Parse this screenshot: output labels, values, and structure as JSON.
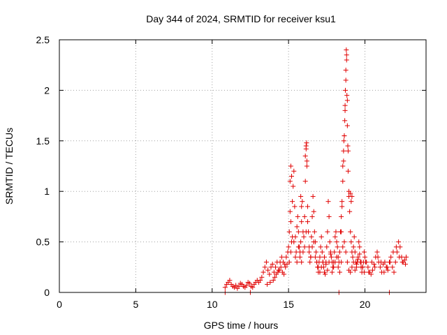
{
  "chart_data": {
    "type": "scatter",
    "title": "Day 344 of 2024, SRMTID for receiver ksu1",
    "xlabel": "GPS time / hours",
    "ylabel": "SRMTID / TECUs",
    "xlim": [
      0,
      24
    ],
    "ylim": [
      0,
      2.5
    ],
    "grid": true,
    "marker": "plus",
    "colors": {
      "series": "#e00000",
      "grid": "#a0a0a0",
      "axis": "#000000"
    },
    "x_ticks": [
      {
        "value": 0,
        "label": "0"
      },
      {
        "value": 5,
        "label": "5"
      },
      {
        "value": 10,
        "label": "10"
      },
      {
        "value": 15,
        "label": "15"
      },
      {
        "value": 20,
        "label": "20"
      }
    ],
    "y_ticks": [
      {
        "value": 0,
        "label": "0"
      },
      {
        "value": 0.5,
        "label": "0.5"
      },
      {
        "value": 1,
        "label": "1"
      },
      {
        "value": 1.5,
        "label": "1.5"
      },
      {
        "value": 2,
        "label": "2"
      },
      {
        "value": 2.5,
        "label": "2.5"
      }
    ],
    "series": [
      {
        "name": "SRMTID",
        "x": [
          10.85,
          10.95,
          11.05,
          11.15,
          11.25,
          11.35,
          11.45,
          11.55,
          11.65,
          11.75,
          11.85,
          11.95,
          12.05,
          12.15,
          12.25,
          12.35,
          12.45,
          12.55,
          12.65,
          12.75,
          12.85,
          12.95,
          13.05,
          13.15,
          13.25,
          13.35,
          13.45,
          13.55,
          13.65,
          13.75,
          13.85,
          13.95,
          14.05,
          14.15,
          14.25,
          14.35,
          14.45,
          14.55,
          14.65,
          14.75,
          14.85,
          14.95,
          15.0,
          15.05,
          15.1,
          15.15,
          15.2,
          15.25,
          15.3,
          15.35,
          15.4,
          15.45,
          15.5,
          15.55,
          15.6,
          15.65,
          15.7,
          15.75,
          15.8,
          15.85,
          15.9,
          15.95,
          16.0,
          16.05,
          16.1,
          16.15,
          16.2,
          16.25,
          16.3,
          16.35,
          16.4,
          16.45,
          16.5,
          16.55,
          16.6,
          16.65,
          16.7,
          16.75,
          16.8,
          16.85,
          16.9,
          16.95,
          17.0,
          17.05,
          17.1,
          17.15,
          17.2,
          17.25,
          17.3,
          17.35,
          17.4,
          17.45,
          17.5,
          17.55,
          17.6,
          17.65,
          17.7,
          17.75,
          17.8,
          17.85,
          17.9,
          17.95,
          18.0,
          18.05,
          18.1,
          18.15,
          18.2,
          18.25,
          18.3,
          18.35,
          18.4,
          18.45,
          18.5,
          18.55,
          18.6,
          18.65,
          18.7,
          18.75,
          18.8,
          18.85,
          18.9,
          18.95,
          19.0,
          19.05,
          19.1,
          19.15,
          19.2,
          19.25,
          19.3,
          19.35,
          19.4,
          19.45,
          19.5,
          19.55,
          19.6,
          19.65,
          19.7,
          19.75,
          19.8,
          19.85,
          19.9,
          19.95,
          20.0,
          20.1,
          20.2,
          20.3,
          20.4,
          20.5,
          20.6,
          20.7,
          20.8,
          20.9,
          21.0,
          21.1,
          21.2,
          21.3,
          21.4,
          21.5,
          21.6,
          21.7,
          21.8,
          21.9,
          22.0,
          22.1,
          22.2,
          22.3,
          22.4,
          22.5,
          22.6,
          22.7,
          15.05,
          15.15,
          15.25,
          15.35,
          15.45,
          15.55,
          15.65,
          15.75,
          15.85,
          15.95,
          16.05,
          16.15,
          16.25,
          16.35,
          16.45,
          16.55,
          16.65,
          16.75,
          16.85,
          16.95,
          17.05,
          17.15,
          17.25,
          17.35,
          17.45,
          17.55,
          17.65,
          17.75,
          17.85,
          17.95,
          18.05,
          18.15,
          18.25,
          18.35,
          18.45,
          18.55,
          18.65,
          18.75,
          18.85,
          18.95,
          19.05,
          19.15,
          19.25,
          19.35,
          19.45,
          19.55,
          19.65,
          19.75,
          19.85,
          19.95,
          20.05,
          20.25,
          20.45,
          20.65,
          20.85,
          21.05,
          21.25,
          21.45,
          21.65,
          21.85,
          22.05,
          22.25,
          22.45,
          22.65,
          14.1,
          14.3,
          14.5,
          14.7,
          14.9,
          13.6,
          13.8,
          14.0,
          14.2,
          14.4,
          14.6,
          14.8,
          18.45,
          18.5,
          18.55,
          18.6,
          18.62,
          18.65,
          18.68,
          18.7,
          18.72,
          18.75,
          18.78,
          18.8,
          18.82,
          18.85,
          18.88,
          18.9,
          18.95,
          16.1,
          16.15,
          16.18,
          16.2,
          15.8,
          15.85,
          15.1,
          15.15,
          15.2,
          19.05,
          19.1,
          19.15,
          10.85,
          12.5,
          18.3,
          21.6
        ],
        "y": [
          0.05,
          0.08,
          0.1,
          0.12,
          0.08,
          0.06,
          0.05,
          0.07,
          0.04,
          0.06,
          0.09,
          0.08,
          0.06,
          0.05,
          0.07,
          0.1,
          0.09,
          0.06,
          0.05,
          0.08,
          0.1,
          0.12,
          0.1,
          0.12,
          0.15,
          0.2,
          0.25,
          0.3,
          0.22,
          0.18,
          0.25,
          0.28,
          0.2,
          0.25,
          0.3,
          0.22,
          0.3,
          0.35,
          0.3,
          0.28,
          0.35,
          0.4,
          0.45,
          0.6,
          0.8,
          0.7,
          0.5,
          0.9,
          1.05,
          1.2,
          0.85,
          0.55,
          0.4,
          0.65,
          0.75,
          0.6,
          0.45,
          0.35,
          0.5,
          0.7,
          0.9,
          0.6,
          0.55,
          0.75,
          1.1,
          1.45,
          1.25,
          0.85,
          0.6,
          0.45,
          0.3,
          0.35,
          0.55,
          0.75,
          0.95,
          0.8,
          0.6,
          0.5,
          0.4,
          0.3,
          0.25,
          0.2,
          0.3,
          0.35,
          0.45,
          0.55,
          0.4,
          0.3,
          0.25,
          0.2,
          0.18,
          0.3,
          0.45,
          0.6,
          0.9,
          0.75,
          0.5,
          0.4,
          0.35,
          0.3,
          0.25,
          0.3,
          0.4,
          0.55,
          0.6,
          0.5,
          0.45,
          0.35,
          0.3,
          0.4,
          0.6,
          0.75,
          0.9,
          1.1,
          1.3,
          1.55,
          1.8,
          2.1,
          2.35,
          1.9,
          1.4,
          1.0,
          0.8,
          0.6,
          0.5,
          0.4,
          0.35,
          0.45,
          0.55,
          0.4,
          0.3,
          0.25,
          0.3,
          0.35,
          0.5,
          0.45,
          0.3,
          0.25,
          0.2,
          0.25,
          0.3,
          0.4,
          0.35,
          0.3,
          0.25,
          0.2,
          0.18,
          0.22,
          0.28,
          0.35,
          0.4,
          0.3,
          0.25,
          0.2,
          0.28,
          0.3,
          0.25,
          0.22,
          0.3,
          0.35,
          0.25,
          0.2,
          0.3,
          0.4,
          0.5,
          0.45,
          0.35,
          0.3,
          0.32,
          0.35,
          0.3,
          0.4,
          0.55,
          0.5,
          0.35,
          0.3,
          0.45,
          0.4,
          0.3,
          0.4,
          0.45,
          0.6,
          0.7,
          0.4,
          0.35,
          0.45,
          0.5,
          0.35,
          0.3,
          0.25,
          0.2,
          0.25,
          0.3,
          0.35,
          0.28,
          0.22,
          0.3,
          0.38,
          0.2,
          0.25,
          0.3,
          0.35,
          0.25,
          0.2,
          0.3,
          0.45,
          0.5,
          0.4,
          0.3,
          0.22,
          0.2,
          0.25,
          0.3,
          0.22,
          0.28,
          0.33,
          0.38,
          0.3,
          0.25,
          0.2,
          0.3,
          0.2,
          0.3,
          0.25,
          0.35,
          0.3,
          0.2,
          0.25,
          0.3,
          0.4,
          0.45,
          0.35,
          0.3,
          0.28,
          0.15,
          0.2,
          0.25,
          0.18,
          0.28,
          0.08,
          0.1,
          0.12,
          0.18,
          0.22,
          0.2,
          0.25,
          0.6,
          0.85,
          1.25,
          1.4,
          1.5,
          1.55,
          1.7,
          1.85,
          2.0,
          2.2,
          2.4,
          2.3,
          1.95,
          1.65,
          1.45,
          1.2,
          0.95,
          1.35,
          1.42,
          1.48,
          1.3,
          0.95,
          0.85,
          1.1,
          1.25,
          1.15,
          0.98,
          0.9,
          0.95,
          0,
          0,
          0,
          0
        ]
      }
    ]
  }
}
